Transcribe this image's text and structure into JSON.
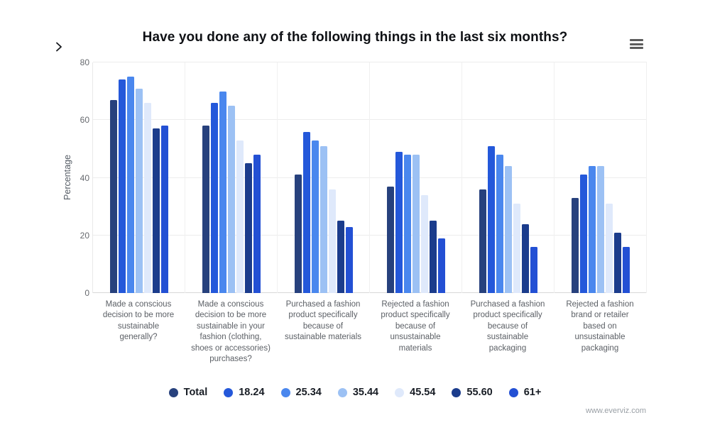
{
  "header": {
    "title": "Have you done any of the following things in the last six months?"
  },
  "controls": {
    "nav_chevron_icon": "chevron-right-icon",
    "menu_icon": "hamburger-menu-icon"
  },
  "chart_data": {
    "type": "bar",
    "title": "Have you done any of the following things in the last six months?",
    "xlabel": "",
    "ylabel": "Percentage",
    "ylim": [
      0,
      80
    ],
    "yticks": [
      0,
      20,
      40,
      60,
      80
    ],
    "grid": true,
    "legend_position": "bottom",
    "categories": [
      "Made a conscious decision to be more sustainable generally?",
      "Made a conscious decision to be more sustainable in your fashion (clothing, shoes or accessories) purchases?",
      "Purchased a fashion product specifically because of sustainable materials",
      "Rejected a fashion product specifically because of unsustainable materials",
      "Purchased a fashion product specifically because of sustainable packaging",
      "Rejected a fashion brand or retailer based on unsustainable packaging"
    ],
    "series": [
      {
        "name": "Total",
        "color": "#27417d",
        "values": [
          67,
          58,
          41,
          37,
          36,
          33
        ]
      },
      {
        "name": "18.24",
        "color": "#2458da",
        "values": [
          74,
          66,
          56,
          49,
          51,
          41
        ]
      },
      {
        "name": "25.34",
        "color": "#4a87ee",
        "values": [
          75,
          70,
          53,
          48,
          48,
          44
        ]
      },
      {
        "name": "35.44",
        "color": "#9cc1f4",
        "values": [
          71,
          65,
          51,
          48,
          44,
          44
        ]
      },
      {
        "name": "45.54",
        "color": "#dfe9fb",
        "values": [
          66,
          53,
          36,
          34,
          31,
          31
        ]
      },
      {
        "name": "55.60",
        "color": "#1b3c8c",
        "values": [
          57,
          45,
          25,
          25,
          24,
          21
        ]
      },
      {
        "name": "61+",
        "color": "#2350d4",
        "values": [
          58,
          48,
          23,
          19,
          16,
          16
        ]
      }
    ]
  },
  "footer": {
    "watermark": "www.everviz.com"
  }
}
